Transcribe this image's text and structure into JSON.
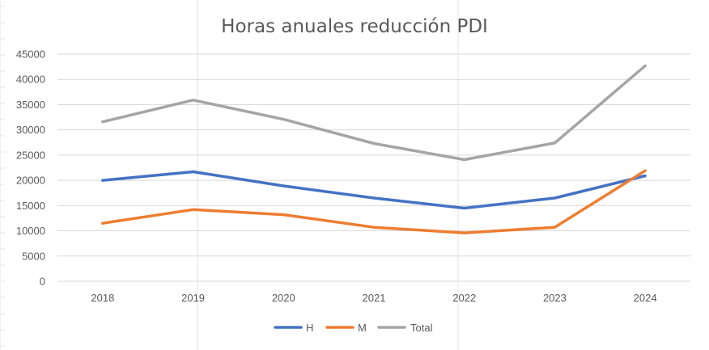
{
  "chart_data": {
    "type": "line",
    "title": "Horas anuales reducción PDI",
    "xlabel": "",
    "ylabel": "",
    "categories": [
      "2018",
      "2019",
      "2020",
      "2021",
      "2022",
      "2023",
      "2024"
    ],
    "ylim": [
      0,
      45000
    ],
    "yticks": [
      0,
      5000,
      10000,
      15000,
      20000,
      25000,
      30000,
      35000,
      40000,
      45000
    ],
    "grid": true,
    "legend": "bottom",
    "series": [
      {
        "name": "H",
        "color": "#4472C4",
        "values": [
          20000,
          21700,
          18900,
          16500,
          14500,
          16500,
          20900
        ]
      },
      {
        "name": "M",
        "color": "#ED7D31",
        "values": [
          11500,
          14200,
          13200,
          10700,
          9600,
          10700,
          21900
        ]
      },
      {
        "name": "Total",
        "color": "#A5A5A5",
        "values": [
          31600,
          35900,
          32100,
          27300,
          24100,
          27400,
          42700
        ]
      }
    ]
  }
}
